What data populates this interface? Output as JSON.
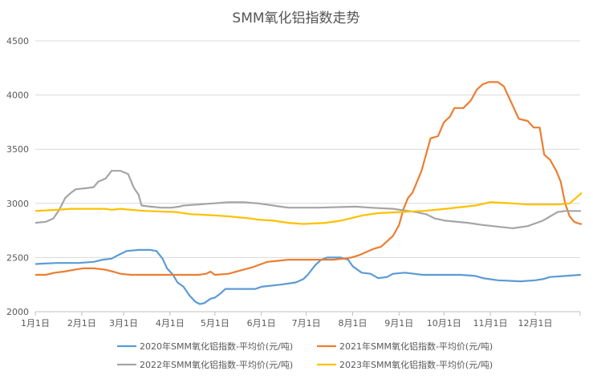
{
  "chart_data": {
    "type": "line",
    "title": "SMM氧化铝指数走势",
    "xlabel": "",
    "ylabel": "",
    "ylim": [
      2000,
      4500
    ],
    "y_ticks": [
      2000,
      2500,
      3000,
      3500,
      4000,
      4500
    ],
    "x_ticks": [
      "1月1日",
      "2月1日",
      "3月1日",
      "4月1日",
      "5月1日",
      "6月1日",
      "7月1日",
      "8月1日",
      "9月1日",
      "10月1日",
      "11月1日",
      "12月1日"
    ],
    "x_tick_days": [
      1,
      32,
      60,
      91,
      121,
      152,
      182,
      213,
      244,
      274,
      305,
      335
    ],
    "x_range_days": [
      1,
      365
    ],
    "grid": "horizontal",
    "legend_position": "bottom",
    "series": [
      {
        "name": "2020年SMM氧化铝指数-平均价(元/吨)",
        "color": "#5b9bd5",
        "points": [
          [
            1,
            2440
          ],
          [
            15,
            2450
          ],
          [
            30,
            2450
          ],
          [
            40,
            2460
          ],
          [
            46,
            2480
          ],
          [
            52,
            2490
          ],
          [
            56,
            2520
          ],
          [
            62,
            2560
          ],
          [
            70,
            2570
          ],
          [
            78,
            2570
          ],
          [
            82,
            2560
          ],
          [
            86,
            2490
          ],
          [
            89,
            2400
          ],
          [
            93,
            2340
          ],
          [
            96,
            2270
          ],
          [
            100,
            2230
          ],
          [
            104,
            2150
          ],
          [
            108,
            2090
          ],
          [
            111,
            2070
          ],
          [
            114,
            2080
          ],
          [
            118,
            2120
          ],
          [
            121,
            2130
          ],
          [
            124,
            2160
          ],
          [
            128,
            2210
          ],
          [
            135,
            2210
          ],
          [
            148,
            2210
          ],
          [
            150,
            2220
          ],
          [
            152,
            2230
          ],
          [
            165,
            2250
          ],
          [
            175,
            2270
          ],
          [
            180,
            2300
          ],
          [
            183,
            2340
          ],
          [
            188,
            2430
          ],
          [
            192,
            2480
          ],
          [
            196,
            2500
          ],
          [
            205,
            2500
          ],
          [
            210,
            2480
          ],
          [
            213,
            2420
          ],
          [
            216,
            2390
          ],
          [
            219,
            2360
          ],
          [
            225,
            2350
          ],
          [
            230,
            2310
          ],
          [
            236,
            2320
          ],
          [
            240,
            2350
          ],
          [
            248,
            2360
          ],
          [
            254,
            2350
          ],
          [
            260,
            2340
          ],
          [
            270,
            2340
          ],
          [
            285,
            2340
          ],
          [
            295,
            2330
          ],
          [
            300,
            2310
          ],
          [
            310,
            2290
          ],
          [
            325,
            2280
          ],
          [
            335,
            2290
          ],
          [
            340,
            2300
          ],
          [
            345,
            2320
          ],
          [
            355,
            2330
          ],
          [
            365,
            2340
          ]
        ]
      },
      {
        "name": "2021年SMM氧化铝指数-平均价(元/吨)",
        "color": "#ed7d31",
        "points": [
          [
            1,
            2340
          ],
          [
            8,
            2340
          ],
          [
            14,
            2360
          ],
          [
            20,
            2370
          ],
          [
            28,
            2390
          ],
          [
            33,
            2400
          ],
          [
            40,
            2400
          ],
          [
            47,
            2390
          ],
          [
            53,
            2370
          ],
          [
            58,
            2350
          ],
          [
            65,
            2340
          ],
          [
            75,
            2340
          ],
          [
            88,
            2340
          ],
          [
            100,
            2340
          ],
          [
            110,
            2340
          ],
          [
            115,
            2350
          ],
          [
            118,
            2370
          ],
          [
            121,
            2340
          ],
          [
            130,
            2350
          ],
          [
            138,
            2380
          ],
          [
            146,
            2410
          ],
          [
            150,
            2430
          ],
          [
            156,
            2460
          ],
          [
            163,
            2470
          ],
          [
            170,
            2480
          ],
          [
            200,
            2480
          ],
          [
            207,
            2490
          ],
          [
            212,
            2500
          ],
          [
            217,
            2520
          ],
          [
            222,
            2550
          ],
          [
            227,
            2580
          ],
          [
            232,
            2600
          ],
          [
            236,
            2650
          ],
          [
            240,
            2700
          ],
          [
            244,
            2800
          ],
          [
            247,
            2950
          ],
          [
            250,
            3050
          ],
          [
            253,
            3100
          ],
          [
            256,
            3200
          ],
          [
            259,
            3300
          ],
          [
            262,
            3450
          ],
          [
            265,
            3600
          ],
          [
            270,
            3620
          ],
          [
            274,
            3750
          ],
          [
            278,
            3800
          ],
          [
            281,
            3880
          ],
          [
            287,
            3880
          ],
          [
            292,
            3950
          ],
          [
            296,
            4050
          ],
          [
            300,
            4100
          ],
          [
            304,
            4120
          ],
          [
            310,
            4120
          ],
          [
            314,
            4080
          ],
          [
            317,
            3990
          ],
          [
            320,
            3900
          ],
          [
            324,
            3780
          ],
          [
            330,
            3760
          ],
          [
            334,
            3700
          ],
          [
            338,
            3700
          ],
          [
            341,
            3450
          ],
          [
            345,
            3400
          ],
          [
            349,
            3300
          ],
          [
            352,
            3200
          ],
          [
            355,
            3000
          ],
          [
            358,
            2880
          ],
          [
            361,
            2830
          ],
          [
            365,
            2810
          ],
          [
            372,
            2810
          ]
        ]
      },
      {
        "name": "2022年SMM氧化铝指数-平均价(元/吨)",
        "color": "#a5a5a5",
        "points": [
          [
            1,
            2820
          ],
          [
            8,
            2830
          ],
          [
            13,
            2860
          ],
          [
            17,
            2940
          ],
          [
            21,
            3050
          ],
          [
            25,
            3100
          ],
          [
            28,
            3130
          ],
          [
            35,
            3140
          ],
          [
            40,
            3150
          ],
          [
            43,
            3200
          ],
          [
            48,
            3230
          ],
          [
            52,
            3300
          ],
          [
            58,
            3300
          ],
          [
            63,
            3270
          ],
          [
            67,
            3140
          ],
          [
            70,
            3080
          ],
          [
            72,
            2980
          ],
          [
            78,
            2970
          ],
          [
            85,
            2960
          ],
          [
            92,
            2960
          ],
          [
            97,
            2970
          ],
          [
            100,
            2980
          ],
          [
            110,
            2990
          ],
          [
            120,
            3000
          ],
          [
            130,
            3010
          ],
          [
            140,
            3010
          ],
          [
            150,
            3000
          ],
          [
            155,
            2990
          ],
          [
            165,
            2970
          ],
          [
            170,
            2960
          ],
          [
            190,
            2960
          ],
          [
            215,
            2970
          ],
          [
            225,
            2960
          ],
          [
            240,
            2950
          ],
          [
            255,
            2920
          ],
          [
            262,
            2900
          ],
          [
            268,
            2860
          ],
          [
            275,
            2840
          ],
          [
            290,
            2820
          ],
          [
            300,
            2800
          ],
          [
            320,
            2770
          ],
          [
            330,
            2790
          ],
          [
            340,
            2840
          ],
          [
            345,
            2880
          ],
          [
            350,
            2920
          ],
          [
            355,
            2930
          ],
          [
            365,
            2930
          ]
        ]
      },
      {
        "name": "2023年SMM氧化铝指数-平均价(元/吨)",
        "color": "#ffc000",
        "points": [
          [
            1,
            2930
          ],
          [
            15,
            2940
          ],
          [
            25,
            2950
          ],
          [
            48,
            2950
          ],
          [
            52,
            2940
          ],
          [
            58,
            2950
          ],
          [
            65,
            2940
          ],
          [
            75,
            2930
          ],
          [
            95,
            2920
          ],
          [
            105,
            2900
          ],
          [
            120,
            2890
          ],
          [
            130,
            2880
          ],
          [
            145,
            2860
          ],
          [
            150,
            2850
          ],
          [
            160,
            2840
          ],
          [
            170,
            2820
          ],
          [
            180,
            2810
          ],
          [
            195,
            2820
          ],
          [
            205,
            2840
          ],
          [
            220,
            2890
          ],
          [
            230,
            2910
          ],
          [
            245,
            2920
          ],
          [
            260,
            2930
          ],
          [
            275,
            2950
          ],
          [
            295,
            2980
          ],
          [
            305,
            3010
          ],
          [
            320,
            3000
          ],
          [
            330,
            2990
          ],
          [
            350,
            2990
          ],
          [
            358,
            3000
          ],
          [
            363,
            3060
          ],
          [
            368,
            3120
          ]
        ]
      }
    ]
  }
}
